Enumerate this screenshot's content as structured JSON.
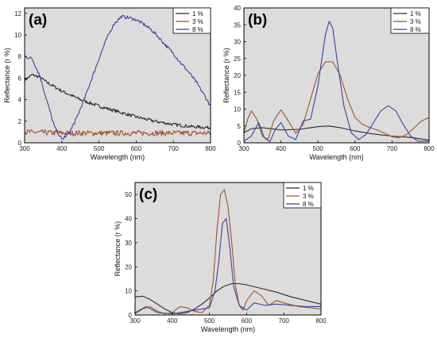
{
  "figure": {
    "colors": {
      "s1": "#2b2b2b",
      "s3": "#a0522d",
      "s8": "#3f3fa6",
      "plot_bg": "#dcdcdc"
    }
  },
  "chart_data": [
    {
      "panel_label": "(a)",
      "type": "line",
      "xlabel": "Wavelength (nm)",
      "ylabel": "Reflectance (r %)",
      "xlim": [
        300,
        800
      ],
      "ylim": [
        0,
        12.5
      ],
      "xticks": [
        "300",
        "400",
        "500",
        "600",
        "700",
        "800"
      ],
      "yticks": [
        "0",
        "2",
        "4",
        "6",
        "8",
        "10",
        "12"
      ],
      "grid": false,
      "legend_position": "top-right",
      "series": [
        {
          "name": "1 %",
          "color": "#2b2b2b",
          "noise": 0.15,
          "x": [
            300,
            320,
            340,
            360,
            400,
            450,
            500,
            550,
            600,
            650,
            700,
            750,
            800
          ],
          "y": [
            5.8,
            6.3,
            6.1,
            5.6,
            4.8,
            4.0,
            3.4,
            2.9,
            2.4,
            2.0,
            1.7,
            1.5,
            1.4
          ]
        },
        {
          "name": "3 %",
          "color": "#a0522d",
          "noise": 0.25,
          "x": [
            300,
            400,
            500,
            600,
            700,
            800
          ],
          "y": [
            1.0,
            0.9,
            0.9,
            0.9,
            0.9,
            0.9
          ]
        },
        {
          "name": "8 %",
          "color": "#3f3fa6",
          "noise": 0.15,
          "x": [
            300,
            320,
            340,
            360,
            380,
            400,
            420,
            440,
            460,
            480,
            500,
            520,
            540,
            560,
            580,
            600,
            620,
            640,
            660,
            680,
            700,
            720,
            740,
            760,
            780,
            800
          ],
          "y": [
            8.0,
            7.8,
            6.3,
            3.9,
            1.5,
            0.3,
            0.9,
            2.3,
            4.0,
            5.9,
            7.8,
            9.6,
            11.0,
            11.7,
            11.6,
            11.4,
            11.0,
            10.5,
            9.8,
            9.0,
            8.3,
            7.4,
            6.6,
            5.7,
            4.6,
            3.4
          ]
        }
      ]
    },
    {
      "panel_label": "(b)",
      "type": "line",
      "xlabel": "Wavelength (nm)",
      "ylabel": "Reflectance (r %)",
      "xlim": [
        300,
        800
      ],
      "ylim": [
        0,
        40
      ],
      "xticks": [
        "300",
        "400",
        "500",
        "600",
        "700",
        "800"
      ],
      "yticks": [
        "0",
        "5",
        "10",
        "15",
        "20",
        "25",
        "30",
        "35",
        "40"
      ],
      "grid": false,
      "legend_position": "top-right",
      "series": [
        {
          "name": "1 %",
          "color": "#2b2b2b",
          "noise": 0,
          "x": [
            300,
            320,
            350,
            400,
            450,
            500,
            530,
            560,
            600,
            650,
            700,
            750,
            800
          ],
          "y": [
            3.0,
            4.2,
            4.5,
            3.8,
            4.0,
            4.8,
            5.0,
            4.5,
            3.5,
            2.6,
            2.0,
            1.6,
            0.8
          ]
        },
        {
          "name": "3 %",
          "color": "#a0522d",
          "noise": 0,
          "x": [
            300,
            310,
            320,
            335,
            350,
            365,
            380,
            400,
            420,
            440,
            460,
            480,
            500,
            520,
            540,
            560,
            580,
            600,
            620,
            640,
            660,
            680,
            700,
            720,
            740,
            760,
            780,
            800
          ],
          "y": [
            3.0,
            7.0,
            9.5,
            7.0,
            2.0,
            1.0,
            6.5,
            9.8,
            6.5,
            2.8,
            5.5,
            13.0,
            20.5,
            24.0,
            24.0,
            20.0,
            13.0,
            7.5,
            5.5,
            4.5,
            3.8,
            2.8,
            1.8,
            1.5,
            2.5,
            4.5,
            6.5,
            7.5
          ]
        },
        {
          "name": "8 %",
          "color": "#3f3fa6",
          "noise": 0,
          "x": [
            300,
            320,
            340,
            355,
            370,
            385,
            400,
            420,
            440,
            460,
            480,
            500,
            520,
            530,
            540,
            555,
            570,
            590,
            610,
            630,
            650,
            670,
            690,
            710,
            730,
            750,
            770,
            800
          ],
          "y": [
            0.5,
            2.0,
            6.0,
            1.5,
            0.3,
            4.0,
            6.0,
            2.0,
            1.0,
            6.5,
            7.0,
            17.0,
            32.0,
            36.0,
            34.0,
            22.0,
            11.0,
            3.0,
            1.0,
            2.5,
            6.0,
            9.5,
            11.0,
            9.5,
            5.5,
            2.0,
            0.5,
            0.5
          ]
        }
      ]
    },
    {
      "panel_label": "(c)",
      "type": "line",
      "xlabel": "Wavelength (nm)",
      "ylabel": "Reflectance (r %)",
      "xlim": [
        300,
        800
      ],
      "ylim": [
        0,
        55
      ],
      "xticks": [
        "300",
        "400",
        "500",
        "600",
        "700",
        "800"
      ],
      "yticks": [
        "0",
        "10",
        "20",
        "30",
        "40",
        "50"
      ],
      "grid": false,
      "legend_position": "top-right",
      "series": [
        {
          "name": "1 %",
          "color": "#2b2b2b",
          "noise": 0,
          "x": [
            300,
            320,
            340,
            360,
            380,
            400,
            420,
            440,
            460,
            480,
            500,
            520,
            540,
            560,
            580,
            600,
            640,
            680,
            720,
            760,
            800
          ],
          "y": [
            7.5,
            7.8,
            6.5,
            4.5,
            2.5,
            1.0,
            0.5,
            1.0,
            2.5,
            4.5,
            7.0,
            10.0,
            12.0,
            13.0,
            13.0,
            12.5,
            11.0,
            9.5,
            7.5,
            6.0,
            4.5
          ]
        },
        {
          "name": "3 %",
          "color": "#a0522d",
          "noise": 0,
          "x": [
            300,
            320,
            340,
            360,
            380,
            400,
            420,
            440,
            460,
            480,
            500,
            510,
            520,
            530,
            540,
            550,
            560,
            570,
            580,
            590,
            600,
            620,
            640,
            660,
            680,
            700,
            740,
            800
          ],
          "y": [
            0.5,
            2.5,
            3.5,
            1.5,
            0.5,
            1.0,
            3.5,
            3.0,
            1.5,
            1.0,
            4.0,
            14.0,
            35.0,
            50.0,
            52.0,
            45.0,
            30.0,
            12.0,
            4.0,
            2.0,
            6.0,
            10.0,
            8.0,
            4.0,
            6.0,
            5.0,
            3.5,
            2.5
          ]
        },
        {
          "name": "8 %",
          "color": "#3f3fa6",
          "noise": 0,
          "x": [
            300,
            330,
            360,
            400,
            440,
            480,
            500,
            515,
            525,
            535,
            545,
            555,
            565,
            580,
            600,
            620,
            650,
            680,
            720,
            760,
            800
          ],
          "y": [
            1.0,
            3.5,
            1.0,
            0.5,
            1.5,
            2.5,
            3.0,
            10.0,
            22.0,
            38.0,
            40.0,
            28.0,
            12.0,
            4.0,
            2.0,
            5.0,
            4.0,
            4.5,
            4.0,
            3.5,
            3.5
          ]
        }
      ]
    }
  ]
}
